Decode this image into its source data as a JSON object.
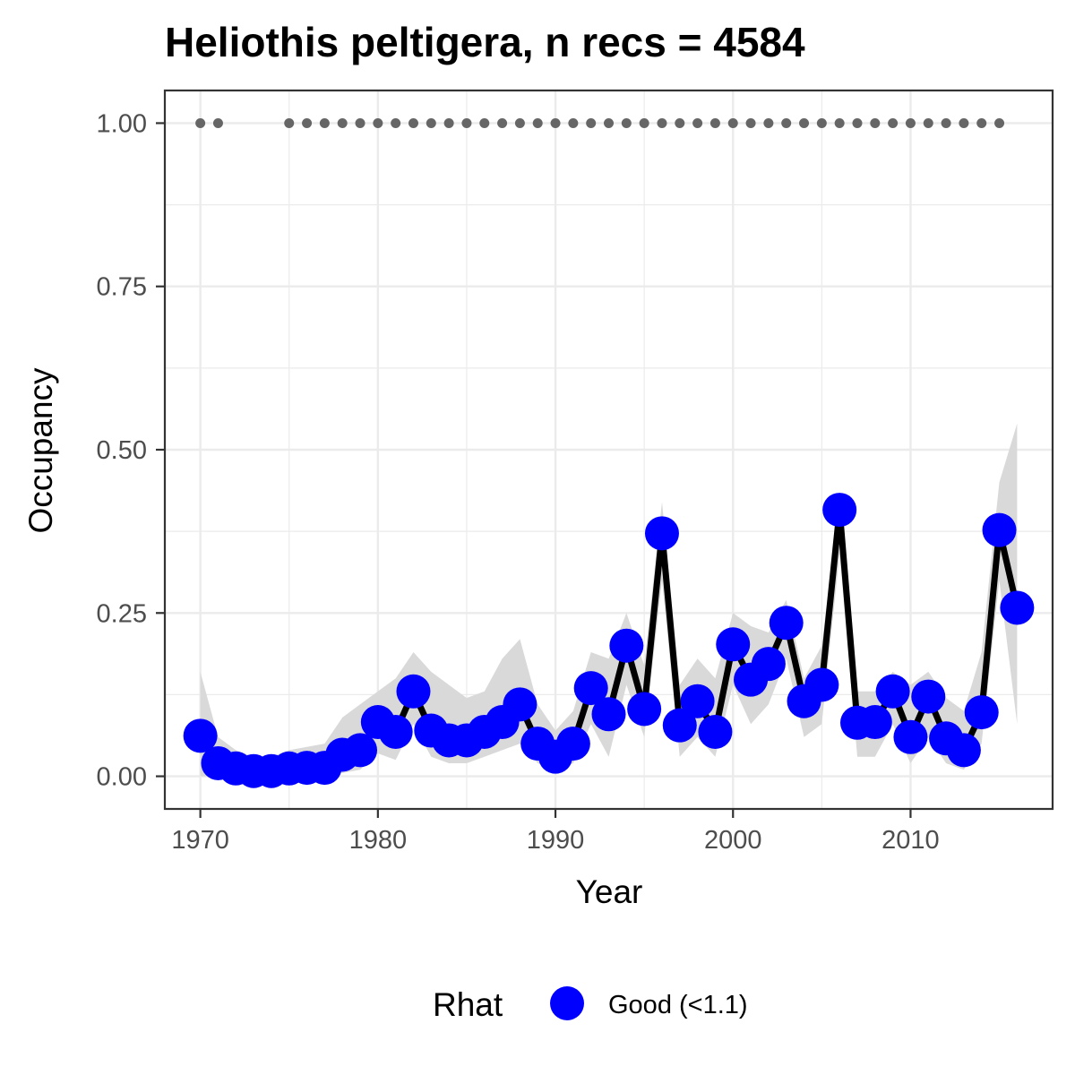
{
  "chart_data": {
    "type": "line",
    "title": "Heliothis peltigera, n recs = 4584",
    "xlabel": "Year",
    "ylabel": "Occupancy",
    "xlim": [
      1968,
      2018
    ],
    "ylim": [
      -0.05,
      1.05
    ],
    "x_ticks": [
      1970,
      1980,
      1990,
      2000,
      2010
    ],
    "x_tick_labels": [
      "1970",
      "1980",
      "1990",
      "2000",
      "2010"
    ],
    "y_ticks": [
      0,
      0.25,
      0.5,
      0.75,
      1.0
    ],
    "y_tick_labels": [
      "0.00",
      "0.25",
      "0.50",
      "0.75",
      "1.00"
    ],
    "grid": true,
    "legend": {
      "position": "bottom",
      "title": "Rhat",
      "entries": [
        {
          "label": "Good (<1.1)",
          "color": "#0000ff"
        }
      ]
    },
    "colors": {
      "points": "#0000ff",
      "line": "#000000",
      "ribbon": "#d9d9d9",
      "record_dots": "#666666",
      "grid": "#ebebeb",
      "border": "#333333"
    },
    "series": [
      {
        "x": [
          1970,
          1971,
          1972,
          1973,
          1974,
          1975,
          1976,
          1977,
          1978,
          1979,
          1980,
          1981,
          1982,
          1983,
          1984,
          1985,
          1986,
          1987,
          1988,
          1989,
          1990,
          1991,
          1992,
          1993,
          1994,
          1995,
          1996,
          1997,
          1998,
          1999,
          2000,
          2001,
          2002,
          2003,
          2004,
          2005,
          2006,
          2007,
          2008,
          2009,
          2010,
          2011,
          2012,
          2013,
          2014,
          2015,
          2016
        ],
        "values": [
          0.062,
          0.02,
          0.012,
          0.008,
          0.008,
          0.012,
          0.013,
          0.013,
          0.033,
          0.04,
          0.083,
          0.068,
          0.13,
          0.07,
          0.055,
          0.055,
          0.068,
          0.083,
          0.11,
          0.05,
          0.03,
          0.05,
          0.135,
          0.095,
          0.2,
          0.103,
          0.372,
          0.078,
          0.115,
          0.068,
          0.202,
          0.148,
          0.172,
          0.235,
          0.115,
          0.14,
          0.408,
          0.082,
          0.083,
          0.13,
          0.06,
          0.122,
          0.058,
          0.04,
          0.098,
          0.377,
          0.258
        ],
        "lower": [
          0.0,
          0.0,
          0.0,
          0.0,
          0.0,
          0.0,
          0.0,
          0.0,
          0.005,
          0.01,
          0.035,
          0.025,
          0.08,
          0.03,
          0.02,
          0.02,
          0.03,
          0.04,
          0.05,
          0.02,
          0.01,
          0.02,
          0.08,
          0.03,
          0.14,
          0.06,
          0.3,
          0.03,
          0.06,
          0.03,
          0.14,
          0.08,
          0.11,
          0.18,
          0.06,
          0.08,
          0.34,
          0.03,
          0.03,
          0.08,
          0.02,
          0.06,
          0.02,
          0.01,
          0.05,
          0.3,
          0.08
        ],
        "upper": [
          0.16,
          0.06,
          0.04,
          0.03,
          0.03,
          0.04,
          0.045,
          0.05,
          0.09,
          0.11,
          0.13,
          0.15,
          0.19,
          0.16,
          0.14,
          0.12,
          0.13,
          0.18,
          0.21,
          0.11,
          0.07,
          0.1,
          0.19,
          0.18,
          0.25,
          0.17,
          0.42,
          0.14,
          0.18,
          0.15,
          0.25,
          0.23,
          0.22,
          0.27,
          0.15,
          0.2,
          0.43,
          0.13,
          0.13,
          0.16,
          0.14,
          0.16,
          0.12,
          0.1,
          0.19,
          0.45,
          0.54
        ]
      }
    ],
    "record_years": [
      1970,
      1971,
      1975,
      1976,
      1977,
      1978,
      1979,
      1980,
      1981,
      1982,
      1983,
      1984,
      1985,
      1986,
      1987,
      1988,
      1989,
      1990,
      1991,
      1992,
      1993,
      1994,
      1995,
      1996,
      1997,
      1998,
      1999,
      2000,
      2001,
      2002,
      2003,
      2004,
      2005,
      2006,
      2007,
      2008,
      2009,
      2010,
      2011,
      2012,
      2013,
      2014,
      2015
    ],
    "record_value": 1.0
  }
}
